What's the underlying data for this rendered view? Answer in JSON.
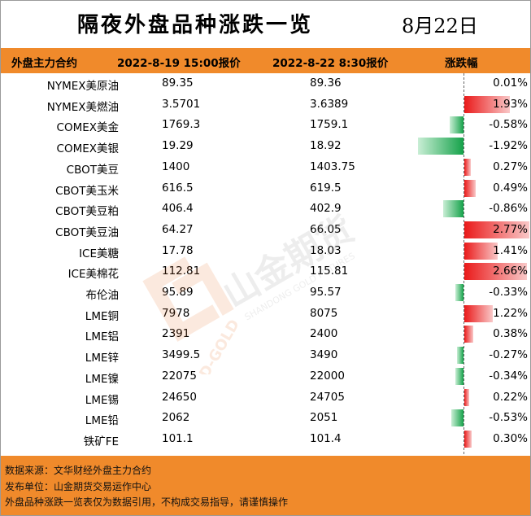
{
  "title": "隔夜外盘品种涨跌一览",
  "date": "8月22日",
  "headers": {
    "name": "外盘主力合约",
    "price1": "2022-8-19 15:00报价",
    "price2": "2022-8-22 8:30报价",
    "change": "涨跌幅"
  },
  "colors": {
    "header_bg": "#f08a2b",
    "positive": "#ea1a1a",
    "negative": "#15a24a"
  },
  "rows": [
    {
      "name": "NYMEX美原油",
      "price1": "89.35",
      "price2": "89.36",
      "change": "0.01%",
      "value": 0.01
    },
    {
      "name": "NYMEX美燃油",
      "price1": "3.5701",
      "price2": "3.6389",
      "change": "1.93%",
      "value": 1.93
    },
    {
      "name": "COMEX美金",
      "price1": "1769.3",
      "price2": "1759.1",
      "change": "-0.58%",
      "value": -0.58
    },
    {
      "name": "COMEX美银",
      "price1": "19.29",
      "price2": "18.92",
      "change": "-1.92%",
      "value": -1.92
    },
    {
      "name": "CBOT美豆",
      "price1": "1400",
      "price2": "1403.75",
      "change": "0.27%",
      "value": 0.27
    },
    {
      "name": "CBOT美玉米",
      "price1": "616.5",
      "price2": "619.5",
      "change": "0.49%",
      "value": 0.49
    },
    {
      "name": "CBOT美豆粕",
      "price1": "406.4",
      "price2": "402.9",
      "change": "-0.86%",
      "value": -0.86
    },
    {
      "name": "CBOT美豆油",
      "price1": "64.27",
      "price2": "66.05",
      "change": "2.77%",
      "value": 2.77
    },
    {
      "name": "ICE美糖",
      "price1": "17.78",
      "price2": "18.03",
      "change": "1.41%",
      "value": 1.41
    },
    {
      "name": "ICE美棉花",
      "price1": "112.81",
      "price2": "115.81",
      "change": "2.66%",
      "value": 2.66
    },
    {
      "name": "布伦油",
      "price1": "95.89",
      "price2": "95.57",
      "change": "-0.33%",
      "value": -0.33
    },
    {
      "name": "LME铜",
      "price1": "7978",
      "price2": "8075",
      "change": "1.22%",
      "value": 1.22
    },
    {
      "name": "LME铝",
      "price1": "2391",
      "price2": "2400",
      "change": "0.38%",
      "value": 0.38
    },
    {
      "name": "LME锌",
      "price1": "3499.5",
      "price2": "3490",
      "change": "-0.27%",
      "value": -0.27
    },
    {
      "name": "LME镍",
      "price1": "22075",
      "price2": "22000",
      "change": "-0.34%",
      "value": -0.34
    },
    {
      "name": "LME锡",
      "price1": "24650",
      "price2": "24705",
      "change": "0.22%",
      "value": 0.22
    },
    {
      "name": "LME铅",
      "price1": "2062",
      "price2": "2051",
      "change": "-0.53%",
      "value": -0.53
    },
    {
      "name": "铁矿FE",
      "price1": "101.1",
      "price2": "101.4",
      "change": "0.30%",
      "value": 0.3
    }
  ],
  "footer": {
    "source": "数据来源：文华财经外盘主力合约",
    "publisher": "发布单位：山金期货交易运作中心",
    "disclaimer": "外盘品种涨跌一览表仅为数据引用，不构成交易指导，请谨慎操作"
  },
  "watermark": {
    "brand": "山金期货",
    "en": "SHANDONG GOLD FUTURES",
    "sub": "SD-GOLD"
  }
}
